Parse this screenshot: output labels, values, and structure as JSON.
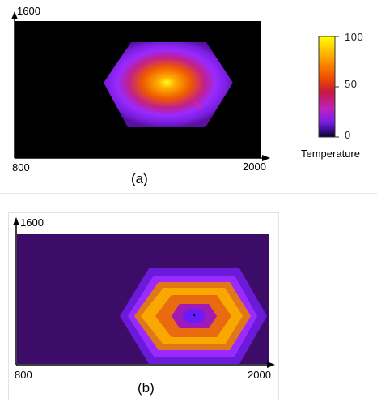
{
  "colors": {
    "background": "#000000",
    "cold": "#3c0c68",
    "palette": [
      "#000000",
      "#2a0a5a",
      "#5a0fa0",
      "#9a2aff",
      "#c21a90",
      "#ef4a00",
      "#ffb000",
      "#ffff00"
    ]
  },
  "chart_data": [
    {
      "type": "heatmap",
      "panel_label": "(a)",
      "x_range": [
        800,
        2000
      ],
      "y_max": 1600,
      "x_tick_labels": [
        "800",
        "2000"
      ],
      "y_tick_labels": [
        "1600"
      ],
      "pattern": "single central hot spot (max ~100) decaying outward in octagonal contours"
    },
    {
      "type": "heatmap",
      "panel_label": "(b)",
      "x_range": [
        800,
        2000
      ],
      "y_max": 1600,
      "x_tick_labels": [
        "800",
        "2000"
      ],
      "y_tick_labels": [
        "1600"
      ],
      "pattern": "octagonal ring of high temperature around a cold center"
    }
  ],
  "colorbar": {
    "title": "Temperature",
    "min": 0,
    "max": 100,
    "ticks": [
      "100",
      "50",
      "0"
    ],
    "tick_values": [
      100,
      50,
      0
    ]
  }
}
